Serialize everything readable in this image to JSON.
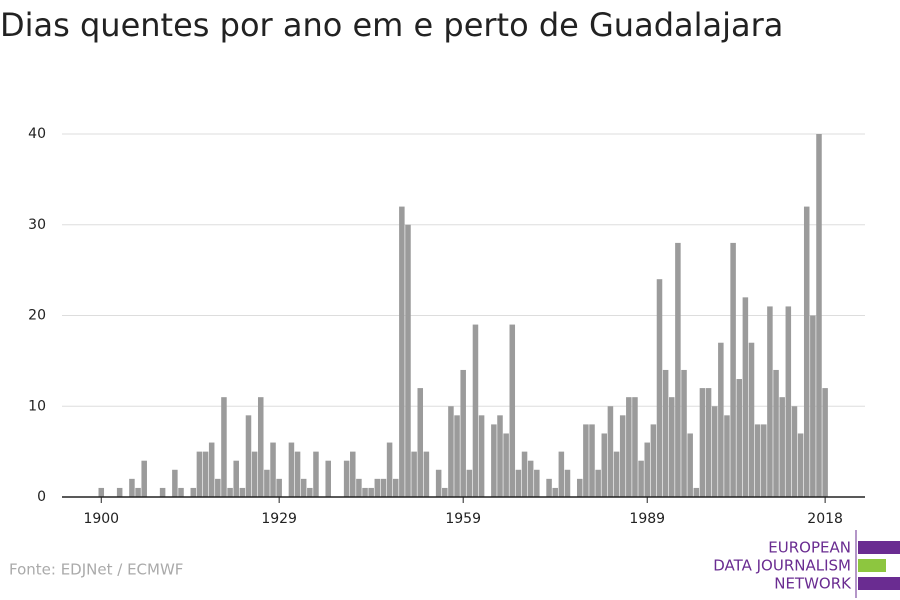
{
  "chart_data": {
    "type": "bar",
    "title": "Dias quentes por ano em e perto de Guadalajara",
    "source": "Fonte: EDJNet / ECMWF",
    "logo": [
      "EUROPEAN",
      "DATA JOURNALISM",
      "NETWORK"
    ],
    "color": "#9b9b9b",
    "grid": true,
    "x": [
      1900,
      1901,
      1902,
      1903,
      1904,
      1905,
      1906,
      1907,
      1908,
      1909,
      1910,
      1911,
      1912,
      1913,
      1914,
      1915,
      1916,
      1917,
      1918,
      1919,
      1920,
      1921,
      1922,
      1923,
      1924,
      1925,
      1926,
      1927,
      1928,
      1929,
      1930,
      1931,
      1932,
      1933,
      1934,
      1935,
      1936,
      1937,
      1938,
      1939,
      1940,
      1941,
      1942,
      1943,
      1944,
      1945,
      1946,
      1947,
      1948,
      1949,
      1950,
      1951,
      1952,
      1953,
      1954,
      1955,
      1956,
      1957,
      1958,
      1959,
      1960,
      1961,
      1962,
      1963,
      1964,
      1965,
      1966,
      1967,
      1968,
      1969,
      1970,
      1971,
      1972,
      1973,
      1974,
      1975,
      1976,
      1977,
      1978,
      1979,
      1980,
      1981,
      1982,
      1983,
      1984,
      1985,
      1986,
      1987,
      1988,
      1989,
      1990,
      1991,
      1992,
      1993,
      1994,
      1995,
      1996,
      1997,
      1998,
      1999,
      2000,
      2001,
      2002,
      2003,
      2004,
      2005,
      2006,
      2007,
      2008,
      2009,
      2010,
      2011,
      2012,
      2013,
      2014,
      2015,
      2016,
      2017,
      2018
    ],
    "values": [
      1,
      0,
      0,
      1,
      0,
      2,
      1,
      4,
      0,
      0,
      1,
      0,
      3,
      1,
      0,
      1,
      5,
      5,
      6,
      2,
      11,
      1,
      4,
      1,
      9,
      5,
      11,
      3,
      6,
      2,
      0,
      6,
      5,
      2,
      1,
      5,
      0,
      4,
      0,
      0,
      4,
      5,
      2,
      1,
      1,
      2,
      2,
      6,
      2,
      32,
      30,
      5,
      12,
      5,
      0,
      3,
      1,
      10,
      9,
      14,
      3,
      19,
      9,
      0,
      8,
      9,
      7,
      19,
      3,
      5,
      4,
      3,
      0,
      2,
      1,
      5,
      3,
      0,
      2,
      8,
      8,
      3,
      7,
      10,
      5,
      9,
      11,
      11,
      4,
      6,
      8,
      24,
      14,
      11,
      28,
      14,
      7,
      1,
      12,
      12,
      10,
      17,
      9,
      28,
      13,
      22,
      17,
      8,
      8,
      21,
      14,
      11,
      21,
      10,
      7,
      32,
      20,
      40,
      12
    ],
    "xlim": [
      1893.6,
      2024.5
    ],
    "xticks": [
      1900,
      1929,
      1959,
      1989,
      2018
    ],
    "ylim": [
      0,
      40
    ],
    "yticks": [
      0,
      10,
      20,
      30,
      40
    ]
  }
}
